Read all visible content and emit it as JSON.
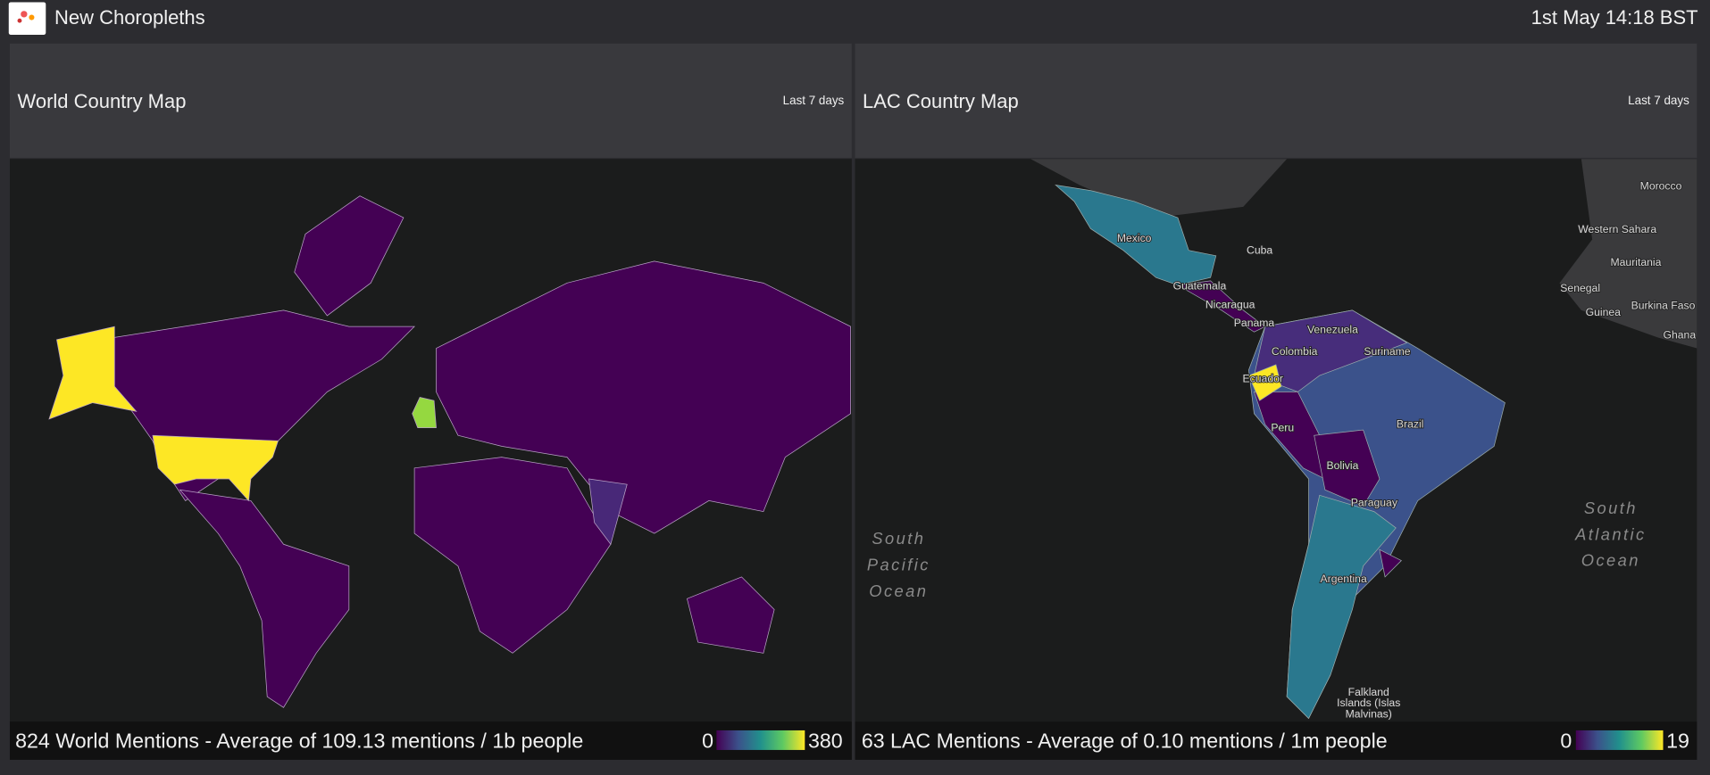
{
  "header": {
    "title": "New Choropleths",
    "timestamp": "1st May 14:18 BST"
  },
  "panels": [
    {
      "title": "World Country Map",
      "period": "Last 7 days",
      "summary": "824 World Mentions - Average of 109.13 mentions / 1b people",
      "legend": {
        "min": 0,
        "max": 380
      }
    },
    {
      "title": "LAC Country Map",
      "period": "Last 7 days",
      "summary": "63 LAC Mentions - Average of 0.10 mentions / 1m people",
      "legend": {
        "min": 0,
        "max": 19
      },
      "map_labels": [
        "Mexico",
        "Cuba",
        "Guatemala",
        "Nicaragua",
        "Panama",
        "Venezuela",
        "Colombia",
        "Suriname",
        "Ecuador",
        "Brazil",
        "Peru",
        "Bolivia",
        "Paraguay",
        "Argentina",
        "Morocco",
        "Western Sahara",
        "Mauritania",
        "Senegal",
        "Guinea",
        "Burkina Faso",
        "Ghana"
      ],
      "ocean_labels": [
        [
          "South",
          "Pacific",
          "Ocean"
        ],
        [
          "South",
          "Atlantic",
          "Ocean"
        ],
        [
          "Falkland",
          "Islands (Islas",
          "Malvinas)"
        ]
      ]
    }
  ]
}
